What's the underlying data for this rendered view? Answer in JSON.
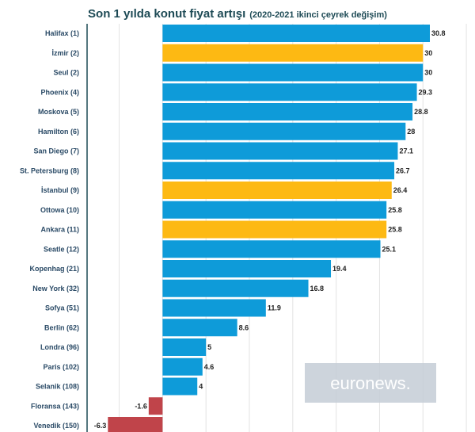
{
  "chart_data": {
    "type": "bar",
    "orientation": "horizontal",
    "title": "Son 1 yılda konut fiyat artışı",
    "subtitle": "(2020-2021 ikinci çeyrek değişim)",
    "categories": [
      "Halifax (1)",
      "İzmir (2)",
      "Seul (2)",
      "Phoenix (4)",
      "Moskova (5)",
      "Hamilton (6)",
      "San Diego (7)",
      "St. Petersburg (8)",
      "İstanbul (9)",
      "Ottowa (10)",
      "Ankara (11)",
      "Seatle (12)",
      "Kopenhag (21)",
      "New York (32)",
      "Sofya (51)",
      "Berlin (62)",
      "Londra (96)",
      "Paris (102)",
      "Selanik (108)",
      "Floransa (143)",
      "Venedik (150)"
    ],
    "values": [
      30.8,
      30,
      30,
      29.3,
      28.8,
      28,
      27.1,
      26.7,
      26.4,
      25.8,
      25.8,
      25.1,
      19.4,
      16.8,
      11.9,
      8.6,
      5,
      4.6,
      4,
      -1.6,
      -6.3
    ],
    "value_labels": [
      "30.8",
      "30",
      "30",
      "29.3",
      "28.8",
      "28",
      "27.1",
      "26.7",
      "26.4",
      "25.8",
      "25.8",
      "25.1",
      "19.4",
      "16.8",
      "11.9",
      "8.6",
      "5",
      "4.6",
      "4",
      "-1.6",
      "-6.3"
    ],
    "highlight": [
      "İzmir (2)",
      "İstanbul (9)",
      "Ankara (11)"
    ],
    "colors": {
      "default": "#0e9bd9",
      "turkey": "#fdb913",
      "negative": "#c0444a"
    },
    "xlim": [
      -8.7,
      36
    ],
    "grid": true,
    "legend": "none"
  },
  "watermark": "euronews."
}
